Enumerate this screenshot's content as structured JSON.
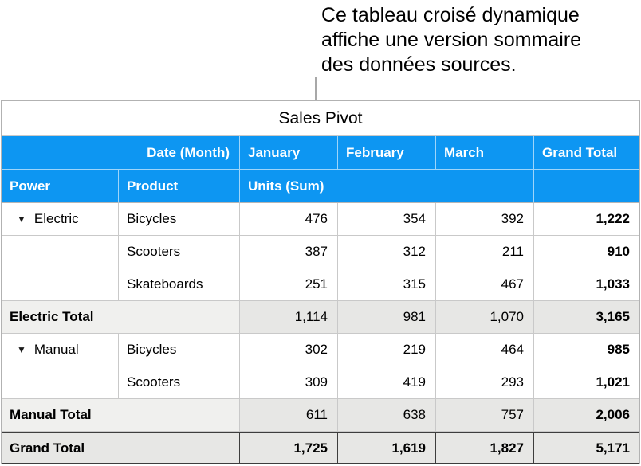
{
  "callout": {
    "lines": [
      "Ce tableau croisé dynamique",
      "affiche une version sommaire",
      "des données sources."
    ]
  },
  "pivot": {
    "title": "Sales Pivot",
    "date_header": "Date (Month)",
    "months": [
      "January",
      "February",
      "March"
    ],
    "grand_total_header": "Grand Total",
    "power_header": "Power",
    "product_header": "Product",
    "values_header": "Units (Sum)",
    "rows": [
      {
        "type": "data",
        "disclosure": "▼",
        "power": "Electric",
        "product": "Bicycles",
        "m1": "476",
        "m2": "354",
        "m3": "392",
        "total": "1,222"
      },
      {
        "type": "data",
        "disclosure": "",
        "power": "",
        "product": "Scooters",
        "m1": "387",
        "m2": "312",
        "m3": "211",
        "total": "910"
      },
      {
        "type": "data",
        "disclosure": "",
        "power": "",
        "product": "Skateboards",
        "m1": "251",
        "m2": "315",
        "m3": "467",
        "total": "1,033"
      },
      {
        "type": "total",
        "label": "Electric Total",
        "m1": "1,114",
        "m2": "981",
        "m3": "1,070",
        "total": "3,165"
      },
      {
        "type": "data",
        "disclosure": "▼",
        "power": "Manual",
        "product": "Bicycles",
        "m1": "302",
        "m2": "219",
        "m3": "464",
        "total": "985"
      },
      {
        "type": "data",
        "disclosure": "",
        "power": "",
        "product": "Scooters",
        "m1": "309",
        "m2": "419",
        "m3": "293",
        "total": "1,021"
      },
      {
        "type": "total",
        "label": "Manual Total",
        "m1": "611",
        "m2": "638",
        "m3": "757",
        "total": "2,006"
      },
      {
        "type": "grand",
        "label": "Grand Total",
        "m1": "1,725",
        "m2": "1,619",
        "m3": "1,827",
        "total": "5,171"
      }
    ]
  },
  "colors": {
    "header_blue": "#0d96f2",
    "total_row_bg": "#e7e7e5",
    "grid_line": "#c9c9c9"
  }
}
